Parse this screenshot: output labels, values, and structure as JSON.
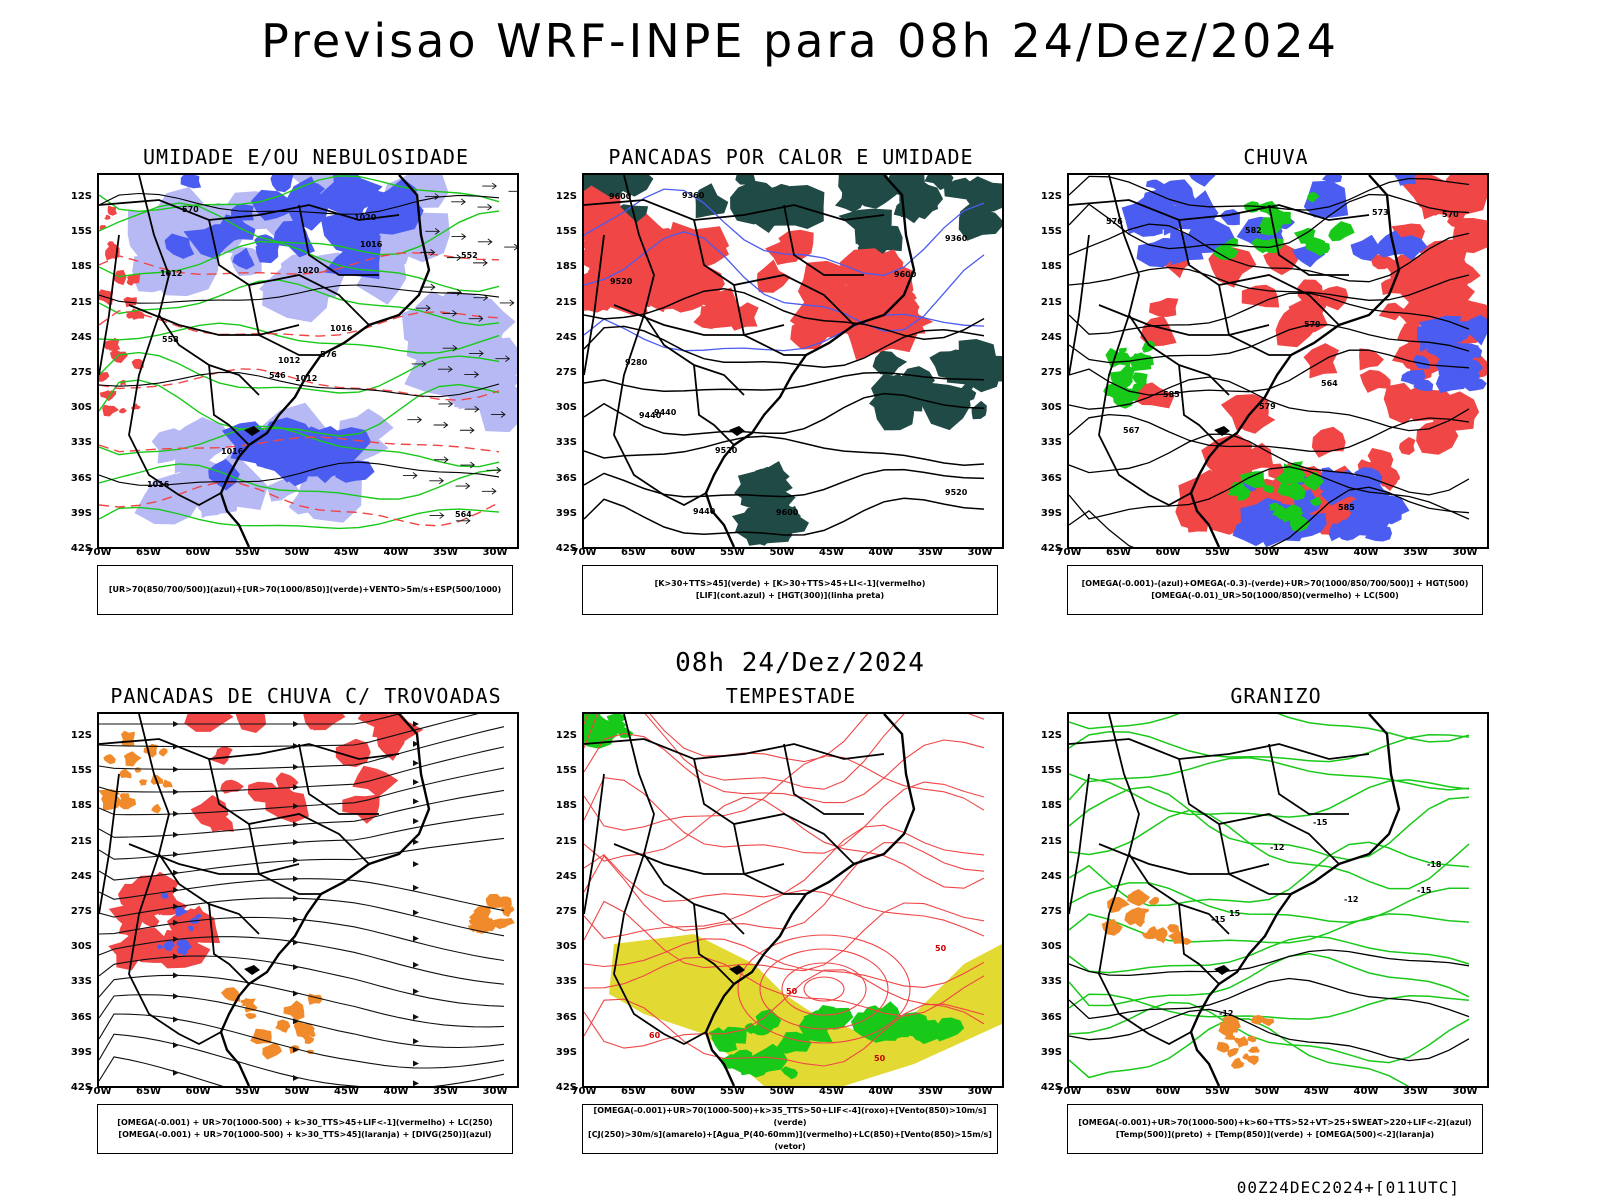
{
  "header": {
    "title": "Previsao WRF-INPE  para 08h 24/Dez/2024",
    "mid_label": "08h 24/Dez/2024",
    "footer": "00Z24DEC2024+[011UTC]"
  },
  "axes": {
    "lat": [
      "12S",
      "15S",
      "18S",
      "21S",
      "24S",
      "27S",
      "30S",
      "33S",
      "36S",
      "39S",
      "42S"
    ],
    "lon": [
      "70W",
      "65W",
      "60W",
      "55W",
      "50W",
      "45W",
      "40W",
      "35W",
      "30W"
    ]
  },
  "colors": {
    "blue": "#4b5cf0",
    "lightblue": "#b7b9f4",
    "green": "#19c919",
    "red": "#f04646",
    "darkgreen": "#1f4a45",
    "orange": "#f08a2a",
    "yellow": "#e2d932"
  },
  "panels": [
    {
      "title": "UMIDADE E/OU NEBULOSIDADE",
      "legend": [
        "[UR>70(850/700/500)](azul)+[UR>70(1000/850)](verde)+VENTO>5m/s+ESP(500/1000)"
      ],
      "contour_labels": [
        "1012",
        "1012",
        "1012",
        "1016",
        "1016",
        "1016",
        "1020",
        "1020",
        "1016",
        "576",
        "570",
        "564",
        "558",
        "552",
        "546"
      ]
    },
    {
      "title": "PANCADAS POR CALOR E UMIDADE",
      "legend": [
        "[K>30+TTS>45](verde) + [K>30+TTS>45+LI<-1](vermelho)",
        "[LIF](cont.azul) + [HGT(300)](linha preta)"
      ],
      "contour_labels": [
        "9600",
        "9600",
        "9600",
        "9520",
        "9520",
        "9520",
        "9440",
        "9440",
        "9360",
        "9360",
        "9280",
        "9440"
      ]
    },
    {
      "title": "CHUVA",
      "legend": [
        "[OMEGA(-0.001)-(azul)+OMEGA(-0.3)-(verde)+UR>70(1000/850/700/500)] + HGT(500)",
        "[OMEGA(-0.01)_UR>50(1000/850)(vermelho) + LC(500)"
      ],
      "contour_labels": [
        "585",
        "582",
        "579",
        "579",
        "576",
        "573",
        "570",
        "567",
        "564",
        "585"
      ]
    },
    {
      "title": "PANCADAS DE CHUVA C/ TROVOADAS",
      "legend": [
        "[OMEGA(-0.001) + UR>70(1000-500) + k>30_TTS>45+LIF<-1](vermelho) + LC(250)",
        "[OMEGA(-0.001) + UR>70(1000-500) + k>30_TTS>45](laranja) + [DIVG(250)](azul)"
      ],
      "contour_labels": []
    },
    {
      "title": "TEMPESTADE",
      "legend": [
        "[OMEGA(-0.001)+UR>70(1000-500)+k>35_TTS>50+LIF<-4](roxo)+[Vento(850)>10m/s](verde)",
        "[CJ(250)>30m/s](amarelo)+[Agua_P(40-60mm)](vermelho)+LC(850)+[Vento(850)>15m/s](vetor)"
      ],
      "contour_labels": [
        "50",
        "50",
        "50",
        "60"
      ]
    },
    {
      "title": "GRANIZO",
      "legend": [
        "[OMEGA(-0.001)+UR>70(1000-500)+k>60+TTS>52+VT>25+SWEAT>220+LIF<-2](azul)",
        "[Temp(500)](preto) + [Temp(850)](verde) + [OMEGA(500)<-2](laranja)"
      ],
      "contour_labels": [
        "-12",
        "-12",
        "-15",
        "-18",
        "-15",
        "-12",
        "-15",
        "15"
      ]
    }
  ]
}
